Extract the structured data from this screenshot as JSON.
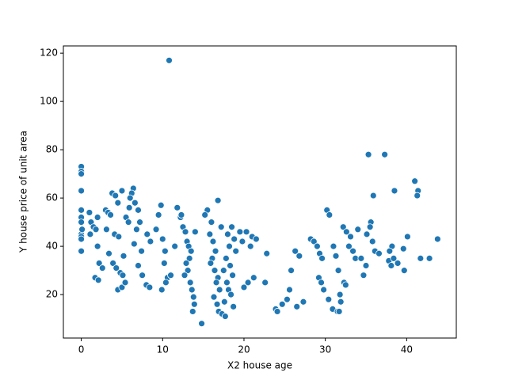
{
  "chart_data": {
    "type": "scatter",
    "x_label": "X2 house age",
    "y_label": "Y house price of unit area",
    "color": "#1f77b4",
    "xlim": [
      -2.2,
      46.1
    ],
    "ylim": [
      2,
      123
    ],
    "xticks": [
      0,
      10,
      20,
      30,
      40
    ],
    "yticks": [
      20,
      40,
      60,
      80,
      100,
      120
    ],
    "x": [
      0,
      0,
      0,
      0,
      0,
      0,
      0,
      0,
      0,
      0,
      0,
      0.1,
      1,
      1.2,
      1.5,
      1.8,
      1.1,
      2,
      1.7,
      2.1,
      2.2,
      2,
      2.6,
      3,
      3.3,
      3.6,
      3.1,
      3.8,
      4.2,
      4.5,
      4.1,
      4.6,
      3.4,
      3.9,
      4.3,
      4.8,
      5.1,
      4.5,
      5,
      5.4,
      5.2,
      5.5,
      5.8,
      5,
      6.4,
      6.2,
      6,
      6.6,
      5.9,
      7,
      7.2,
      6.8,
      6.5,
      7.4,
      7,
      7.5,
      8,
      8.4,
      8.1,
      8.5,
      9.8,
      9.5,
      9.2,
      10,
      10.3,
      10.2,
      10.6,
      10.4,
      9.9,
      10.8,
      11,
      11.5,
      11.8,
      12.2,
      12.5,
      12.8,
      13,
      13.2,
      13.5,
      13.3,
      12.9,
      13.1,
      12.7,
      13.4,
      13.6,
      13.8,
      13.9,
      13.7,
      14,
      12.3,
      15.5,
      15.2,
      16,
      15.8,
      16.2,
      16.5,
      16.1,
      15.9,
      16.4,
      16.8,
      16.6,
      17,
      16.3,
      16.7,
      16.9,
      14.8,
      16.8,
      17.2,
      18.5,
      18,
      18.8,
      18.2,
      19,
      17.8,
      18.3,
      17.5,
      18.6,
      17.9,
      18.1,
      18.4,
      17.6,
      18.7,
      17.3,
      17.7,
      19.5,
      19.8,
      20.3,
      21,
      20.8,
      21.2,
      20.5,
      20,
      21.5,
      22.8,
      22.6,
      23.9,
      24.1,
      24.7,
      25.3,
      25.6,
      25.8,
      26.3,
      26.8,
      26.5,
      27.3,
      28.2,
      28.6,
      29,
      29.3,
      29.6,
      30.2,
      30.5,
      29.2,
      29.5,
      29.8,
      30.4,
      30.9,
      31.5,
      31,
      31.3,
      32.2,
      32.6,
      33.1,
      32.9,
      33.4,
      33.7,
      31.6,
      32.3,
      31.8,
      31.9,
      31.7,
      34,
      32.5,
      35.3,
      35.6,
      35.5,
      35.1,
      35.8,
      36.1,
      34.4,
      35,
      34.7,
      35.9,
      37.3,
      36.6,
      37.8,
      38.5,
      38.2,
      37.9,
      38.4,
      38.1,
      39.7,
      40.1,
      39.6,
      38.9,
      41,
      41.4,
      41.3,
      41.7,
      42.8,
      43.8
    ],
    "values": [
      73,
      71,
      70,
      63,
      55,
      52,
      50,
      45,
      44,
      43,
      38,
      47,
      54,
      50,
      48,
      47,
      45,
      52,
      27,
      26,
      33,
      40,
      31,
      55,
      54,
      53,
      47,
      62,
      61,
      58,
      45,
      44,
      37,
      33,
      31,
      29,
      28,
      22,
      23,
      25,
      36,
      52,
      50,
      63,
      64,
      62,
      60,
      58,
      56,
      55,
      50,
      47,
      41,
      38,
      32,
      28,
      24,
      23,
      45,
      42,
      57,
      53,
      47,
      43,
      38,
      33,
      27,
      25,
      22,
      117,
      28,
      40,
      56,
      52,
      48,
      46,
      42,
      40,
      38,
      35,
      33,
      30,
      28,
      25,
      22,
      19,
      16,
      13,
      46,
      53,
      55,
      53,
      50,
      45,
      42,
      38,
      35,
      33,
      30,
      27,
      25,
      22,
      19,
      16,
      13,
      8,
      59,
      48,
      48,
      45,
      43,
      40,
      38,
      35,
      32,
      30,
      28,
      25,
      22,
      20,
      17,
      15,
      12,
      11,
      46,
      42,
      46,
      44,
      40,
      27,
      25,
      23,
      43,
      37,
      25,
      14,
      13,
      16,
      18,
      22,
      30,
      38,
      36,
      15,
      17,
      43,
      42,
      40,
      37,
      35,
      55,
      53,
      27,
      25,
      22,
      18,
      14,
      13,
      40,
      36,
      48,
      46,
      44,
      40,
      38,
      35,
      30,
      25,
      20,
      17,
      13,
      47,
      24,
      78,
      50,
      48,
      45,
      42,
      38,
      35,
      32,
      28,
      61,
      78,
      37,
      34,
      63,
      40,
      38,
      35,
      32,
      30,
      44,
      39,
      33,
      67,
      63,
      61,
      35,
      35,
      43
    ]
  }
}
